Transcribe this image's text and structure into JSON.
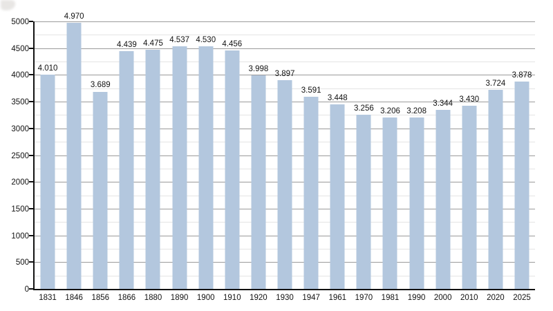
{
  "page": {
    "background_color": "#ffffff"
  },
  "chart_data": {
    "type": "bar",
    "title": "",
    "xlabel": "",
    "ylabel": "",
    "legend": "none",
    "grid": "on",
    "categories": [
      "1831",
      "1846",
      "1856",
      "1866",
      "1880",
      "1890",
      "1900",
      "1910",
      "1920",
      "1930",
      "1947",
      "1961",
      "1970",
      "1981",
      "1990",
      "2000",
      "2010",
      "2020",
      "2025"
    ],
    "values": [
      4010,
      4970,
      3689,
      4439,
      4475,
      4537,
      4530,
      4456,
      3998,
      3897,
      3591,
      3448,
      3256,
      3206,
      3208,
      3344,
      3430,
      3724,
      3878
    ],
    "value_labels": [
      "4.010",
      "4.970",
      "3.689",
      "4.439",
      "4.475",
      "4.537",
      "4.530",
      "4.456",
      "3.998",
      "3.897",
      "3.591",
      "3.448",
      "3.256",
      "3.206",
      "3.208",
      "3.344",
      "3.430",
      "3.724",
      "3.878"
    ],
    "ylim": [
      0,
      5000
    ],
    "y_major_step": 500,
    "y_minor_step": 250,
    "y_tick_labels": [
      "0",
      "500",
      "1000",
      "1500",
      "2000",
      "2500",
      "3000",
      "3500",
      "4000",
      "4500",
      "5000"
    ],
    "bar_color": "#b3c7de",
    "axis_color": "#111111",
    "major_grid_color": "#9a9a9a",
    "minor_grid_color": "#e4e4e4",
    "label_color": "#111111"
  }
}
